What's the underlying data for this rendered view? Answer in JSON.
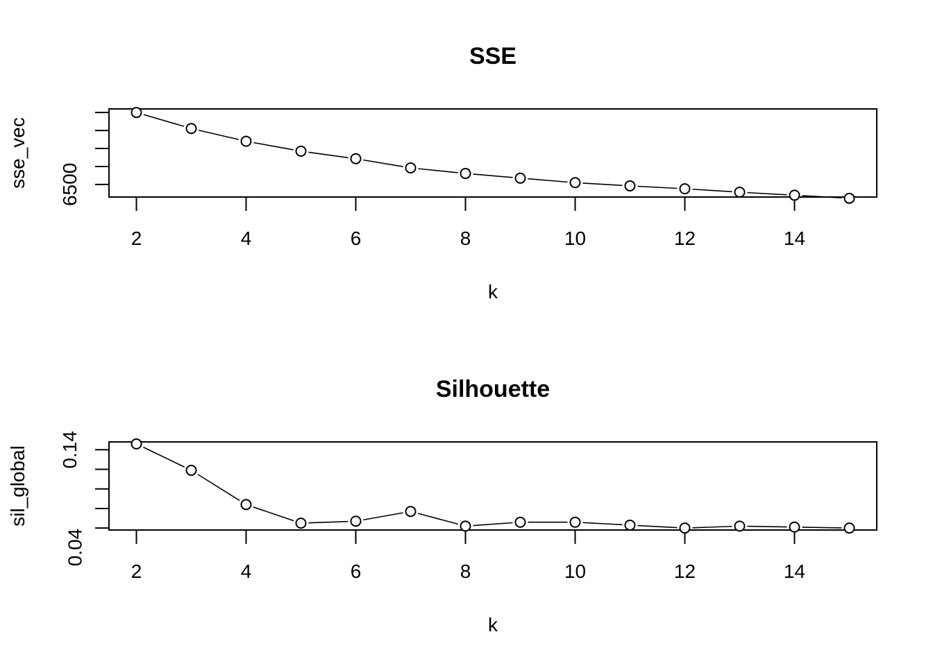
{
  "chart_data": [
    {
      "type": "line",
      "title": "SSE",
      "xlabel": "k",
      "ylabel": "sse_vec",
      "x": [
        2,
        3,
        4,
        5,
        6,
        7,
        8,
        9,
        10,
        11,
        12,
        13,
        14,
        15
      ],
      "series": [
        {
          "values": [
            6900,
            6811,
            6740,
            6685,
            6643,
            6592,
            6561,
            6535,
            6510,
            6492,
            6476,
            6457,
            6440,
            6423
          ]
        }
      ],
      "xlim": [
        1.5,
        15.5
      ],
      "ylim": [
        6430,
        6920
      ],
      "x_ticks": [
        2,
        4,
        6,
        8,
        10,
        12,
        14
      ],
      "x_tick_labels": [
        "2",
        "4",
        "6",
        "8",
        "10",
        "12",
        "14"
      ],
      "y_ticks": [
        6500,
        6600,
        6700,
        6800,
        6900
      ],
      "y_tick_labels": [
        "6500",
        "",
        "",
        "",
        ""
      ],
      "marker": "open-circle",
      "grid": false
    },
    {
      "type": "line",
      "title": "Silhouette",
      "xlabel": "k",
      "ylabel": "sil_global",
      "x": [
        2,
        3,
        4,
        5,
        6,
        7,
        8,
        9,
        10,
        11,
        12,
        13,
        14,
        15
      ],
      "series": [
        {
          "values": [
            0.146,
            0.119,
            0.084,
            0.065,
            0.067,
            0.077,
            0.062,
            0.066,
            0.066,
            0.063,
            0.06,
            0.062,
            0.061,
            0.06
          ]
        }
      ],
      "xlim": [
        1.5,
        15.5
      ],
      "ylim": [
        0.058,
        0.148
      ],
      "x_ticks": [
        2,
        4,
        6,
        8,
        10,
        12,
        14
      ],
      "x_tick_labels": [
        "2",
        "4",
        "6",
        "8",
        "10",
        "12",
        "14"
      ],
      "y_ticks": [
        0.04,
        0.06,
        0.08,
        0.1,
        0.12,
        0.14
      ],
      "y_tick_labels": [
        "0.04",
        "",
        "",
        "",
        "",
        "0.14"
      ],
      "marker": "open-circle",
      "grid": false
    }
  ]
}
